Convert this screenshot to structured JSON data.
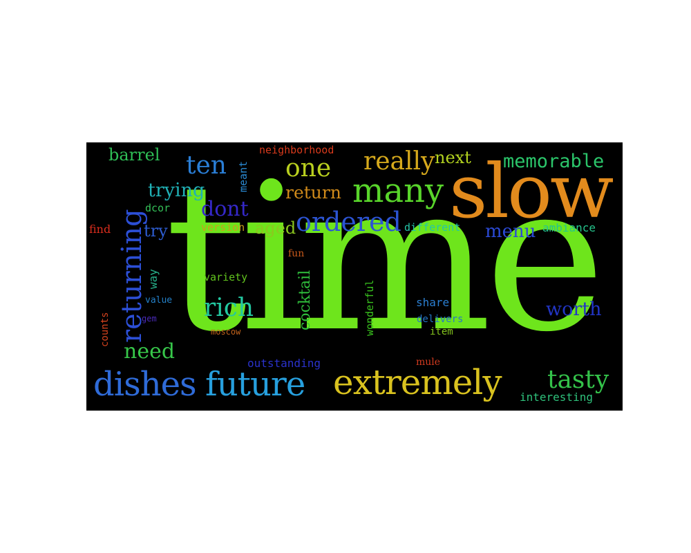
{
  "words": [
    {
      "id": "time",
      "text": "time",
      "color": "#6ee51c"
    },
    {
      "id": "slow",
      "text": "slow",
      "color": "#e28b1d"
    },
    {
      "id": "many",
      "text": "many",
      "color": "#59d52b"
    },
    {
      "id": "extremely",
      "text": "extremely",
      "color": "#d9c21f"
    },
    {
      "id": "dishes",
      "text": "dishes",
      "color": "#2f6bd8"
    },
    {
      "id": "future",
      "text": "future",
      "color": "#27a0de"
    },
    {
      "id": "returning",
      "text": "returning",
      "color": "#2c4fd6"
    },
    {
      "id": "ordered",
      "text": "ordered",
      "color": "#2c54d3"
    },
    {
      "id": "one",
      "text": "one",
      "color": "#b9cf1f"
    },
    {
      "id": "really",
      "text": "really",
      "color": "#d6a91c"
    },
    {
      "id": "ten",
      "text": "ten",
      "color": "#2a7ed6"
    },
    {
      "id": "memorable",
      "text": "memorable",
      "color": "#2bc56a"
    },
    {
      "id": "tasty",
      "text": "tasty",
      "color": "#34c24a"
    },
    {
      "id": "rich",
      "text": "rich",
      "color": "#23c7a0"
    },
    {
      "id": "worth",
      "text": "worth",
      "color": "#2235c4"
    },
    {
      "id": "need",
      "text": "need",
      "color": "#37c74a"
    },
    {
      "id": "dont",
      "text": "dont",
      "color": "#3528c9"
    },
    {
      "id": "trying",
      "text": "trying",
      "color": "#20b0b5"
    },
    {
      "id": "return",
      "text": "return",
      "color": "#d08a1a"
    },
    {
      "id": "next",
      "text": "next",
      "color": "#b3d31f"
    },
    {
      "id": "barrel",
      "text": "barrel",
      "color": "#2fbf56"
    },
    {
      "id": "aged",
      "text": "aged",
      "color": "#8cc81f"
    },
    {
      "id": "menu",
      "text": "menu",
      "color": "#2b4ad6"
    },
    {
      "id": "try",
      "text": "try",
      "color": "#2d5cd0"
    },
    {
      "id": "cocktail",
      "text": "cocktail",
      "color": "#2fbf3c"
    },
    {
      "id": "neighborhood",
      "text": "neighborhood",
      "color": "#d93a1c"
    },
    {
      "id": "meant",
      "text": "meant",
      "color": "#2a8bd5"
    },
    {
      "id": "dcor",
      "text": "dcor",
      "color": "#34c058"
    },
    {
      "id": "find",
      "text": "find",
      "color": "#d92d1d"
    },
    {
      "id": "version",
      "text": "version",
      "color": "#c9a11c"
    },
    {
      "id": "different",
      "text": "different",
      "color": "#25c4a8"
    },
    {
      "id": "ambiance",
      "text": "ambiance",
      "color": "#25c48c"
    },
    {
      "id": "fun",
      "text": "fun",
      "color": "#c9591a"
    },
    {
      "id": "way",
      "text": "way",
      "color": "#27b08a"
    },
    {
      "id": "variety",
      "text": "variety",
      "color": "#62c41e"
    },
    {
      "id": "wonderful",
      "text": "wonderful",
      "color": "#39c21e"
    },
    {
      "id": "value",
      "text": "value",
      "color": "#2480c8"
    },
    {
      "id": "share",
      "text": "share",
      "color": "#2b7fd2"
    },
    {
      "id": "counts",
      "text": "counts",
      "color": "#d6431e"
    },
    {
      "id": "gem",
      "text": "gem",
      "color": "#4a2ab8"
    },
    {
      "id": "delivers",
      "text": "delivers",
      "color": "#2476c7"
    },
    {
      "id": "moscow",
      "text": "moscow",
      "color": "#c1621b"
    },
    {
      "id": "item",
      "text": "item",
      "color": "#84c41d"
    },
    {
      "id": "outstanding",
      "text": "outstanding",
      "color": "#2a32cc"
    },
    {
      "id": "mule",
      "text": "mule",
      "color": "#d23a1f"
    },
    {
      "id": "interesting",
      "text": "interesting",
      "color": "#2fc27c"
    }
  ]
}
